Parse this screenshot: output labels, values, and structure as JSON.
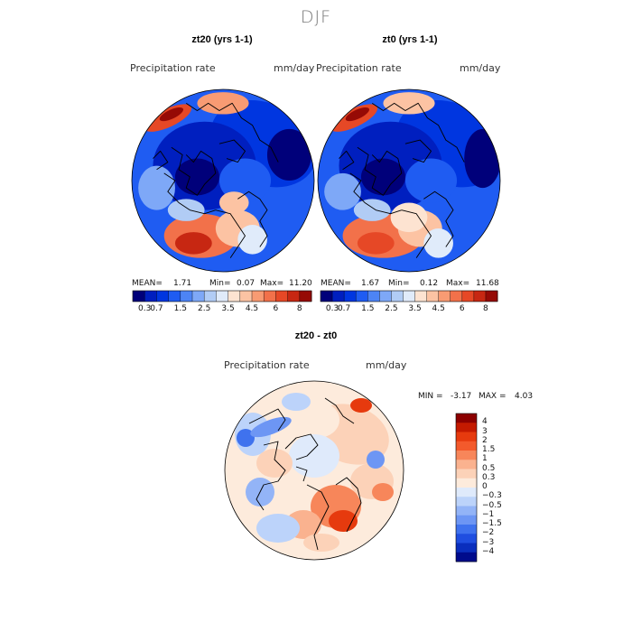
{
  "figure": {
    "season": "DJF"
  },
  "panels": [
    {
      "title": "zt20 (yrs 1-1)",
      "variable": "Precipitation rate",
      "units": "mm/day",
      "mean_label": "MEAN=",
      "mean": "1.71",
      "min_label": "Min=",
      "min": "0.07",
      "max_label": "Max=",
      "max": "11.20"
    },
    {
      "title": "zt0 (yrs 1-1)",
      "variable": "Precipitation rate",
      "units": "mm/day",
      "mean_label": "MEAN=",
      "mean": "1.67",
      "min_label": "Min=",
      "min": "0.12",
      "max_label": "Max=",
      "max": "11.68"
    }
  ],
  "diff_panel": {
    "title": "zt20 - zt0",
    "variable": "Precipitation rate",
    "units": "mm/day",
    "min_label": "MIN =",
    "min": "-3.17",
    "max_label": "MAX =",
    "max": "4.03"
  },
  "chart_data": [
    {
      "type": "heatmap",
      "title": "zt20 (yrs 1-1)",
      "projection": "north polar stereographic",
      "variable": "Precipitation rate",
      "units": "mm/day",
      "mean": 1.71,
      "min": 0.07,
      "max": 11.2,
      "colorbar": {
        "ticks": [
          "0.3",
          "0.7",
          "1",
          "1.5",
          "2",
          "2.5",
          "3",
          "3.5",
          "4",
          "4.5",
          "5",
          "6",
          "7",
          "8"
        ],
        "tick_labels_shown": [
          "0.3",
          "0.7",
          "1.5",
          "2.5",
          "3.5",
          "4.5",
          "6",
          "8"
        ],
        "colors": [
          "#00007a",
          "#001fbf",
          "#0036e0",
          "#1f5cf2",
          "#4d84f5",
          "#7ea8f7",
          "#b1ccf5",
          "#e0ebfa",
          "#fde3d1",
          "#fcc3a3",
          "#f89b73",
          "#f2714a",
          "#e64826",
          "#c72712",
          "#960a05"
        ]
      }
    },
    {
      "type": "heatmap",
      "title": "zt0 (yrs 1-1)",
      "projection": "north polar stereographic",
      "variable": "Precipitation rate",
      "units": "mm/day",
      "mean": 1.67,
      "min": 0.12,
      "max": 11.68,
      "colorbar": {
        "ticks": [
          "0.3",
          "0.7",
          "1",
          "1.5",
          "2",
          "2.5",
          "3",
          "3.5",
          "4",
          "4.5",
          "5",
          "6",
          "7",
          "8"
        ],
        "tick_labels_shown": [
          "0.3",
          "0.7",
          "1.5",
          "2.5",
          "3.5",
          "4.5",
          "6",
          "8"
        ],
        "colors": [
          "#00007a",
          "#001fbf",
          "#0036e0",
          "#1f5cf2",
          "#4d84f5",
          "#7ea8f7",
          "#b1ccf5",
          "#e0ebfa",
          "#fde3d1",
          "#fcc3a3",
          "#f89b73",
          "#f2714a",
          "#e64826",
          "#c72712",
          "#960a05"
        ]
      }
    },
    {
      "type": "heatmap",
      "title": "zt20 - zt0",
      "projection": "north polar stereographic",
      "variable": "Precipitation rate",
      "units": "mm/day",
      "min": -3.17,
      "max": 4.03,
      "colorbar": {
        "orientation": "vertical",
        "ticks": [
          "4",
          "3",
          "2",
          "1.5",
          "1",
          "0.5",
          "0.3",
          "0",
          "-0.3",
          "-0.5",
          "-1",
          "-1.5",
          "-2",
          "-3",
          "-4"
        ],
        "tick_labels": [
          "4",
          "3",
          "2",
          "1.5",
          "1",
          "0.5",
          "0.3",
          "0",
          "−0.3",
          "−0.5",
          "−1",
          "−1.5",
          "−2",
          "−3",
          "−4"
        ],
        "colors": [
          "#8c0000",
          "#c41a00",
          "#e63a0e",
          "#f35a2c",
          "#f7865a",
          "#fab28f",
          "#fcd2b8",
          "#fdebdc",
          "#dfeafb",
          "#bcd3fa",
          "#93b4f7",
          "#6d96f4",
          "#3f72ee",
          "#1f4ee0",
          "#0a2ebd",
          "#000b8c"
        ]
      }
    }
  ]
}
